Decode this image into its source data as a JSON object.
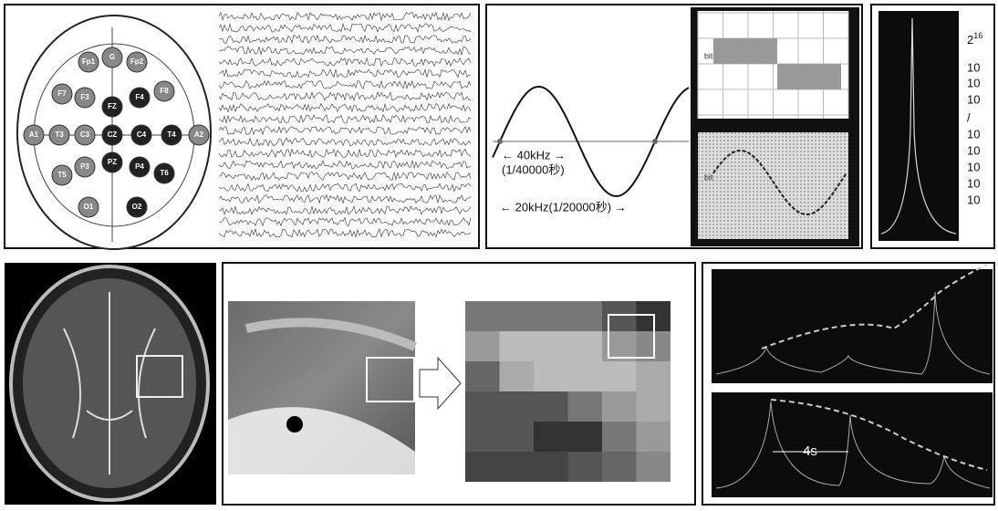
{
  "eeg": {
    "electrodes": [
      "Fp1",
      "G",
      "Fp2",
      "F7",
      "F3",
      "FZ",
      "F4",
      "F8",
      "A1",
      "T3",
      "C3",
      "CZ",
      "C4",
      "T4",
      "A2",
      "T5",
      "P3",
      "PZ",
      "P4",
      "T6",
      "O1",
      "O2"
    ]
  },
  "sampling": {
    "label_40k": "← 40kHz →",
    "label_40k_period": "(1/40000秒)",
    "label_20k": "← 20kHz(1/20000秒) →",
    "bit_axis": "bit"
  },
  "spectrum": {
    "base": "2",
    "exponent": "16",
    "scale_labels": [
      "10",
      "10",
      "10",
      "/",
      "10",
      "10",
      "10",
      "10",
      "10"
    ]
  },
  "peaks": {
    "interval_label": "4s"
  }
}
